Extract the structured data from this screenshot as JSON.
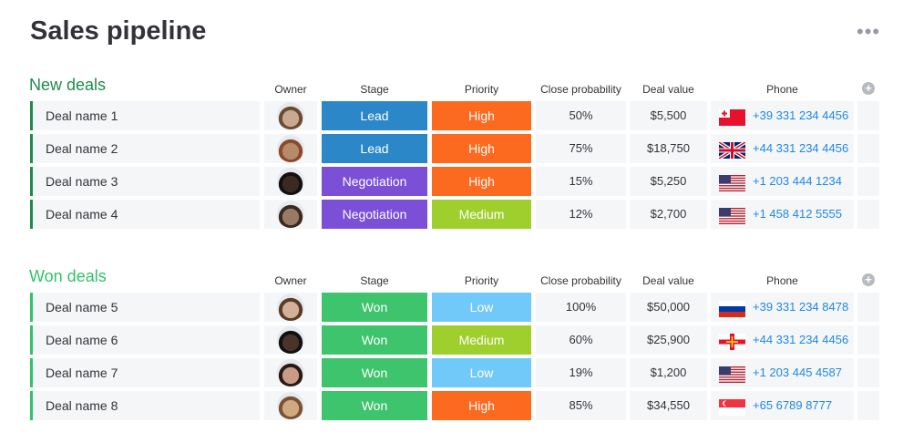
{
  "header": {
    "title": "Sales pipeline"
  },
  "groups": [
    {
      "title": "New deals",
      "color": "#1f8a4c",
      "columns": [
        "Owner",
        "Stage",
        "Priority",
        "Close probability",
        "Deal value",
        "Phone"
      ],
      "rows": [
        {
          "name": "Deal name 1",
          "stage": {
            "label": "Lead",
            "color": "#2b87c8"
          },
          "priority": {
            "label": "High",
            "color": "#fb6a1f"
          },
          "probability": "50%",
          "value": "$5,500",
          "phone": "+39 331 234 4456"
        },
        {
          "name": "Deal name 2",
          "stage": {
            "label": "Lead",
            "color": "#2b87c8"
          },
          "priority": {
            "label": "High",
            "color": "#fb6a1f"
          },
          "probability": "75%",
          "value": "$18,750",
          "phone": "+44 331 234 4456"
        },
        {
          "name": "Deal name 3",
          "stage": {
            "label": "Negotiation",
            "color": "#7b4fd6"
          },
          "priority": {
            "label": "High",
            "color": "#fb6a1f"
          },
          "probability": "15%",
          "value": "$5,250",
          "phone": "+1 203 444 1234"
        },
        {
          "name": "Deal name 4",
          "stage": {
            "label": "Negotiation",
            "color": "#7b4fd6"
          },
          "priority": {
            "label": "Medium",
            "color": "#9fcf2c"
          },
          "probability": "12%",
          "value": "$2,700",
          "phone": "+1 458 412 5555"
        }
      ]
    },
    {
      "title": "Won deals",
      "color": "#33c16a",
      "columns": [
        "Owner",
        "Stage",
        "Priority",
        "Close probability",
        "Deal value",
        "Phone"
      ],
      "rows": [
        {
          "name": "Deal name 5",
          "stage": {
            "label": "Won",
            "color": "#3ec46d"
          },
          "priority": {
            "label": "Low",
            "color": "#70c9f8"
          },
          "probability": "100%",
          "value": "$50,000",
          "phone": "+39 331 234 8478"
        },
        {
          "name": "Deal name 6",
          "stage": {
            "label": "Won",
            "color": "#3ec46d"
          },
          "priority": {
            "label": "Medium",
            "color": "#9fcf2c"
          },
          "probability": "60%",
          "value": "$25,900",
          "phone": "+44 331 234 4456"
        },
        {
          "name": "Deal name 7",
          "stage": {
            "label": "Won",
            "color": "#3ec46d"
          },
          "priority": {
            "label": "Low",
            "color": "#70c9f8"
          },
          "probability": "19%",
          "value": "$1,200",
          "phone": "+1 203 445 4587"
        },
        {
          "name": "Deal name 8",
          "stage": {
            "label": "Won",
            "color": "#3ec46d"
          },
          "priority": {
            "label": "High",
            "color": "#fb6a1f"
          },
          "probability": "85%",
          "value": "$34,550",
          "phone": "+65 6789 8777"
        }
      ]
    }
  ]
}
